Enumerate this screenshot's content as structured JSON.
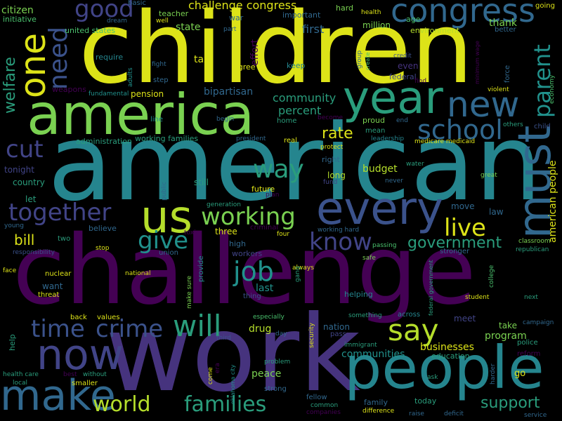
{
  "words": {
    "children": "children",
    "american": "american",
    "challenge": "challenge",
    "work": "work",
    "america": "america",
    "people": "people",
    "year": "year",
    "every": "every",
    "make": "make",
    "now": "now",
    "must": "must",
    "us": "us",
    "congress": "congress",
    "new": "new",
    "one": "one",
    "good": "good",
    "need": "need",
    "school": "school",
    "parent": "parent",
    "will": "will",
    "say": "say",
    "time": "time",
    "crime": "crime",
    "working": "working",
    "together": "together",
    "cut": "cut",
    "way": "way",
    "give": "give",
    "live": "live",
    "know": "know",
    "job": "job",
    "world": "world",
    "families": "families",
    "support": "support",
    "welfare": "welfare",
    "government": "government",
    "rate": "rate",
    "american_people": "american people",
    "bill": "bill",
    "community": "community",
    "percent": "percent",
    "challenge_congress": "challenge congress",
    "first": "first",
    "state": "state",
    "tax": "tax",
    "bipartisan": "bipartisan",
    "budget": "budget",
    "drug": "drug",
    "last": "last",
    "businesses": "businesses",
    "communities": "communities",
    "program": "program",
    "peace": "peace",
    "nation": "nation",
    "take": "take",
    "thank": "thank",
    "million": "million",
    "citizen": "citizen",
    "initiative": "initiative",
    "united_states": "united states",
    "teacher": "teacher",
    "hard": "hard",
    "health": "health",
    "age": "age",
    "environment": "environment",
    "better": "better",
    "going": "going",
    "war": "war",
    "important": "important",
    "basic": "basic",
    "dream": "dream",
    "well": "well",
    "part": "part",
    "effort": "effort",
    "agree": "agree",
    "keep": "keep",
    "even": "even",
    "federal": "federal",
    "credit": "credit",
    "find": "find",
    "force": "force",
    "violent": "violent",
    "economy": "economy",
    "minimum_wage": "minimum wage",
    "create": "create",
    "group": "group",
    "fight": "fight",
    "step": "step",
    "require": "require",
    "weapons": "weapons",
    "fundamental": "fundamental",
    "adults": "adults",
    "pension": "pension",
    "line": "line",
    "begin": "begin",
    "home": "home",
    "become": "become",
    "mean": "mean",
    "leadership": "leadership",
    "medicare_medicaid": "medicare medicaid",
    "others": "others",
    "child": "child",
    "proud": "proud",
    "end": "end",
    "administration": "administration",
    "working_families": "working families",
    "president": "president",
    "real": "real",
    "protect": "protect",
    "right": "right",
    "long": "long",
    "water": "water",
    "great": "great",
    "fund": "fund",
    "never": "never",
    "public": "public",
    "still": "still",
    "future": "future",
    "plan": "plan",
    "tonight": "tonight",
    "country": "country",
    "let": "let",
    "generation": "generation",
    "move": "move",
    "law": "law",
    "young": "young",
    "believe": "believe",
    "toxic": "toxic",
    "three": "three",
    "criminal": "criminal",
    "working_hard": "working hard",
    "four": "four",
    "two": "two",
    "responsibility": "responsibility",
    "stop": "stop",
    "union": "union",
    "high": "high",
    "workers": "workers",
    "passing": "passing",
    "classroom": "classroom",
    "republican": "republican",
    "stronger": "stronger",
    "face": "face",
    "nuclear": "nuclear",
    "national": "national",
    "provide": "provide",
    "always": "always",
    "safe": "safe",
    "want": "want",
    "threat": "threat",
    "make_sure": "make sure",
    "thing": "thing",
    "gang": "gang",
    "helping": "helping",
    "federal_government": "federal government",
    "college": "college",
    "student": "student",
    "next": "next",
    "back": "back",
    "values": "values",
    "especially": "especially",
    "across": "across",
    "something": "something",
    "meet": "meet",
    "campaign": "campaign",
    "help": "help",
    "day": "day",
    "security": "security",
    "pass": "pass",
    "third": "third",
    "immigrant": "immigrant",
    "police": "police",
    "reform": "reform",
    "health_care": "health care",
    "local": "local",
    "best": "best",
    "without": "without",
    "smaller": "smaller",
    "come": "come",
    "era": "era",
    "oklahoma_city": "oklahoma city",
    "problem": "problem",
    "strong": "strong",
    "education": "education",
    "ask": "ask",
    "go": "go",
    "harder": "harder",
    "fellow": "fellow",
    "common": "common",
    "companies": "companies",
    "family": "family",
    "difference": "difference",
    "today": "today",
    "raise": "raise",
    "deficit": "deficit",
    "service": "service"
  },
  "palette": {
    "background": "#000000",
    "yellow": "#dde318",
    "lime": "#b5de2b",
    "lightgreen": "#7ad151",
    "green": "#4ac16d",
    "seagreen": "#2a9d7c",
    "teal": "#21918c",
    "cyan": "#25858e",
    "blue": "#31688e",
    "indigo": "#3b528b",
    "slate": "#414487",
    "purple": "#46337e",
    "deeppurple": "#440154"
  }
}
